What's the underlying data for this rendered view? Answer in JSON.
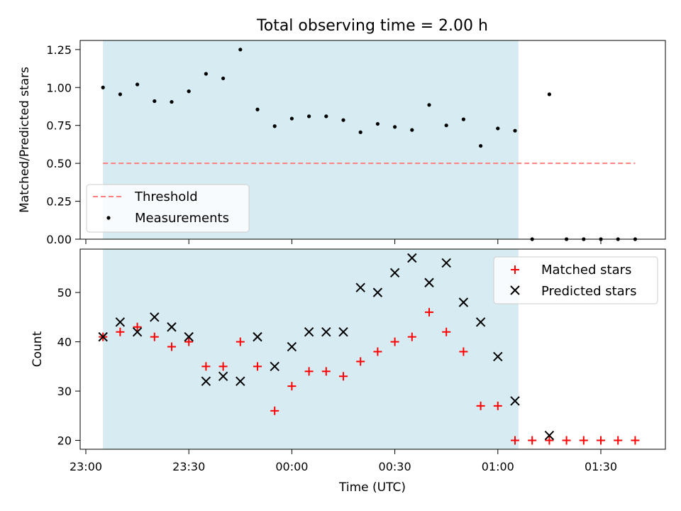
{
  "chart_data": [
    {
      "type": "scatter",
      "title": "Total observing time = 2.00 h",
      "xlabel": "",
      "ylabel": "Matched/Predicted stars",
      "x_unit": "time (UTC), HH:MM",
      "xlim": [
        "23:00",
        "01:40"
      ],
      "ylim": [
        0,
        1.31
      ],
      "yticks": [
        0.0,
        0.25,
        0.5,
        0.75,
        1.0,
        1.25
      ],
      "ytick_labels": [
        "0.00",
        "0.25",
        "0.50",
        "0.75",
        "1.00",
        "1.25"
      ],
      "shaded_span": {
        "start": "23:05",
        "end": "01:06",
        "color": "#add8e6"
      },
      "threshold": {
        "name": "Threshold",
        "y": 0.5,
        "x_start": "23:05",
        "x_end": "01:40",
        "color": "#ff7f7f",
        "style": "dashed"
      },
      "series": [
        {
          "name": "Measurements",
          "marker": "dot",
          "color": "#000000",
          "x": [
            "23:05",
            "23:10",
            "23:15",
            "23:20",
            "23:25",
            "23:30",
            "23:35",
            "23:40",
            "23:45",
            "23:50",
            "23:55",
            "00:00",
            "00:05",
            "00:10",
            "00:15",
            "00:20",
            "00:25",
            "00:30",
            "00:35",
            "00:40",
            "00:45",
            "00:50",
            "00:55",
            "01:00",
            "01:05",
            "01:10",
            "01:15",
            "01:20",
            "01:25",
            "01:30",
            "01:35",
            "01:40"
          ],
          "y": [
            1.0,
            0.955,
            1.02,
            0.91,
            0.905,
            0.975,
            1.09,
            1.06,
            1.25,
            0.855,
            0.745,
            0.795,
            0.81,
            0.81,
            0.785,
            0.705,
            0.76,
            0.74,
            0.72,
            0.885,
            0.75,
            0.79,
            0.615,
            0.73,
            0.715,
            0.0,
            0.955,
            0.0,
            0.0,
            0.0,
            0.0,
            0.0
          ]
        }
      ],
      "legend": {
        "placement": "lower-left",
        "entries": [
          "Threshold",
          "Measurements"
        ]
      }
    },
    {
      "type": "scatter",
      "title": "",
      "xlabel": "Time (UTC)",
      "ylabel": "Count",
      "x_unit": "time (UTC), HH:MM",
      "xlim": [
        "23:00",
        "01:40"
      ],
      "xticks": [
        "23:00",
        "23:30",
        "00:00",
        "00:30",
        "01:00",
        "01:30"
      ],
      "ylim": [
        18.2,
        58.8
      ],
      "yticks": [
        20,
        30,
        40,
        50
      ],
      "ytick_labels": [
        "20",
        "30",
        "40",
        "50"
      ],
      "shaded_span": {
        "start": "23:05",
        "end": "01:06",
        "color": "#add8e6"
      },
      "series": [
        {
          "name": "Matched stars",
          "marker": "plus",
          "color": "#ff0000",
          "x": [
            "23:05",
            "23:10",
            "23:15",
            "23:20",
            "23:25",
            "23:30",
            "23:35",
            "23:40",
            "23:45",
            "23:50",
            "23:55",
            "00:00",
            "00:05",
            "00:10",
            "00:15",
            "00:20",
            "00:25",
            "00:30",
            "00:35",
            "00:40",
            "00:45",
            "00:50",
            "00:55",
            "01:00",
            "01:05",
            "01:10",
            "01:15",
            "01:20",
            "01:25",
            "01:30",
            "01:35",
            "01:40"
          ],
          "y": [
            41,
            42,
            43,
            41,
            39,
            40,
            35,
            35,
            40,
            35,
            26,
            31,
            34,
            34,
            33,
            36,
            38,
            40,
            41,
            46,
            42,
            38,
            27,
            27,
            20,
            20,
            20,
            20,
            20,
            20,
            20,
            20
          ]
        },
        {
          "name": "Predicted stars",
          "marker": "x",
          "color": "#000000",
          "x": [
            "23:05",
            "23:10",
            "23:15",
            "23:20",
            "23:25",
            "23:30",
            "23:35",
            "23:40",
            "23:45",
            "23:50",
            "23:55",
            "00:00",
            "00:05",
            "00:10",
            "00:15",
            "00:20",
            "00:25",
            "00:30",
            "00:35",
            "00:40",
            "00:45",
            "00:50",
            "00:55",
            "01:00",
            "01:05",
            "01:15"
          ],
          "y": [
            41,
            44,
            42,
            45,
            43,
            41,
            32,
            33,
            32,
            41,
            35,
            39,
            42,
            42,
            42,
            51,
            50,
            54,
            57,
            52,
            56,
            48,
            44,
            37,
            28,
            21
          ]
        }
      ],
      "legend": {
        "placement": "upper-right",
        "entries": [
          "Matched stars",
          "Predicted stars"
        ]
      }
    }
  ]
}
